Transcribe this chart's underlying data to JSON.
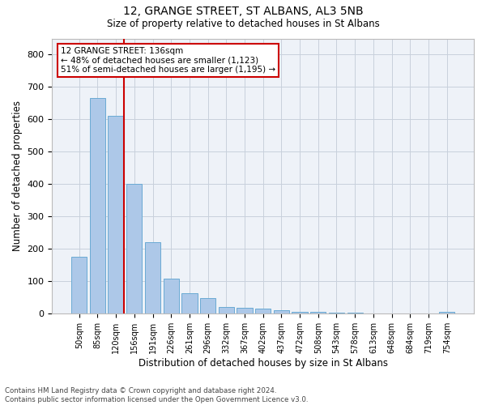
{
  "title1": "12, GRANGE STREET, ST ALBANS, AL3 5NB",
  "title2": "Size of property relative to detached houses in St Albans",
  "xlabel": "Distribution of detached houses by size in St Albans",
  "ylabel": "Number of detached properties",
  "footnote": "Contains HM Land Registry data © Crown copyright and database right 2024.\nContains public sector information licensed under the Open Government Licence v3.0.",
  "bar_labels": [
    "50sqm",
    "85sqm",
    "120sqm",
    "156sqm",
    "191sqm",
    "226sqm",
    "261sqm",
    "296sqm",
    "332sqm",
    "367sqm",
    "402sqm",
    "437sqm",
    "472sqm",
    "508sqm",
    "543sqm",
    "578sqm",
    "613sqm",
    "648sqm",
    "684sqm",
    "719sqm",
    "754sqm"
  ],
  "bar_values": [
    175,
    665,
    610,
    400,
    220,
    108,
    63,
    48,
    20,
    18,
    15,
    10,
    7,
    5,
    4,
    3,
    0,
    0,
    0,
    0,
    7
  ],
  "bar_color": "#adc8e8",
  "bar_edge_color": "#6aaad4",
  "grid_color": "#c8d0dc",
  "background_color": "#eef2f8",
  "vline_color": "#cc0000",
  "annotation_text": "12 GRANGE STREET: 136sqm\n← 48% of detached houses are smaller (1,123)\n51% of semi-detached houses are larger (1,195) →",
  "annotation_box_color": "#ffffff",
  "annotation_border_color": "#cc0000",
  "ylim": [
    0,
    850
  ],
  "yticks": [
    0,
    100,
    200,
    300,
    400,
    500,
    600,
    700,
    800
  ]
}
